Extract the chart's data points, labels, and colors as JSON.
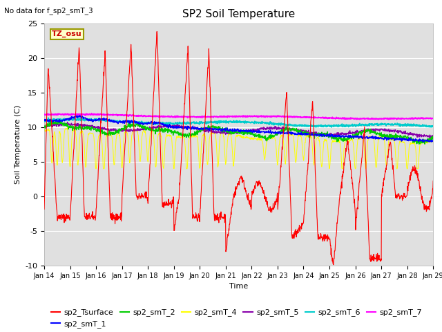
{
  "title": "SP2 Soil Temperature",
  "no_data_text": "No data for f_sp2_smT_3",
  "xlabel": "Time",
  "ylabel": "Soil Temperature (C)",
  "ylim": [
    -10,
    25
  ],
  "x_tick_labels": [
    "Jan 14",
    "Jan 15",
    "Jan 16",
    "Jan 17",
    "Jan 18",
    "Jan 19",
    "Jan 20",
    "Jan 21",
    "Jan 22",
    "Jan 23",
    "Jan 24",
    "Jan 25",
    "Jan 26",
    "Jan 27",
    "Jan 28",
    "Jan 29"
  ],
  "tz_label": "TZ_osu",
  "bg_color": "#e0e0e0",
  "colors": {
    "sp2_Tsurface": "#ff0000",
    "sp2_smT_1": "#0000ff",
    "sp2_smT_2": "#00cc00",
    "sp2_smT_4": "#ffff00",
    "sp2_smT_5": "#8800aa",
    "sp2_smT_6": "#00cccc",
    "sp2_smT_7": "#ff00ff"
  }
}
